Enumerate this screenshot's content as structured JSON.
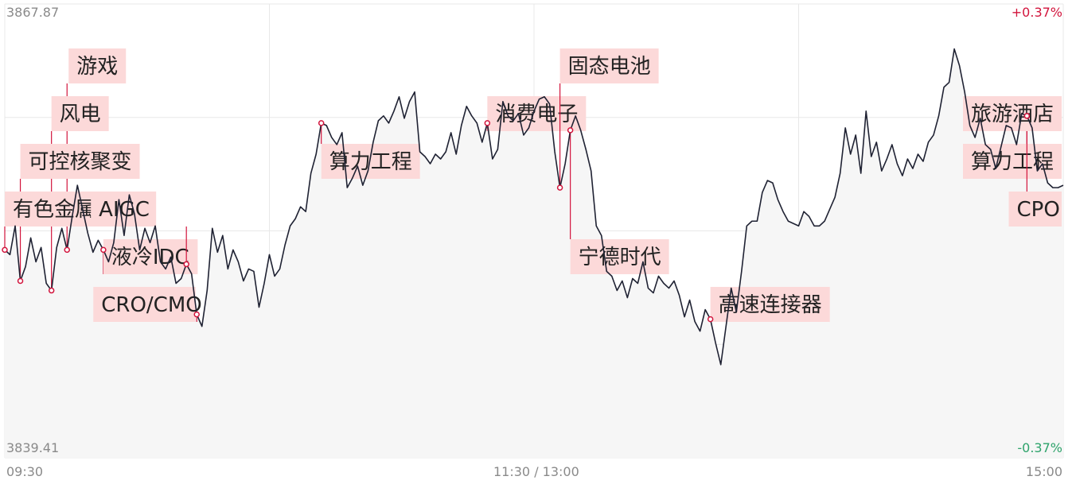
{
  "chart_data": {
    "type": "line",
    "y_top_label": "3867.87",
    "y_bottom_label": "3839.41",
    "pct_top_label": "+0.37%",
    "pct_bottom_label": "-0.37%",
    "ylim": [
      3839.41,
      3867.87
    ],
    "x_tick_labels": [
      "09:30",
      "11:30 / 13:00",
      "15:00"
    ],
    "grid": true,
    "colors": {
      "line": "#1f2233",
      "marker": "#d2143c",
      "label_bg": "#fcd9d9",
      "grid": "#e8e8e8",
      "fill": "#f6f6f6",
      "up": "#d2143c",
      "down": "#2ea36b"
    },
    "series": [
      {
        "values": [
          3852.45,
          3852.15,
          3853.95,
          3850.5,
          3851.4,
          3853.2,
          3851.7,
          3852.6,
          3850.35,
          3849.9,
          3852.6,
          3853.8,
          3852.45,
          3854.55,
          3856.5,
          3855.0,
          3853.5,
          3852.3,
          3853.05,
          3852.45,
          3851.7,
          3852.9,
          3855.6,
          3853.35,
          3855.9,
          3854.7,
          3852.45,
          3853.8,
          3852.9,
          3853.95,
          3851.7,
          3851.25,
          3852.0,
          3850.35,
          3850.65,
          3851.55,
          3850.95,
          3848.4,
          3847.65,
          3849.9,
          3853.8,
          3852.3,
          3853.35,
          3851.25,
          3852.45,
          3851.7,
          3850.5,
          3851.25,
          3851.1,
          3848.85,
          3850.35,
          3852.15,
          3850.8,
          3851.25,
          3852.75,
          3853.95,
          3854.4,
          3855.15,
          3854.85,
          3857.25,
          3858.45,
          3860.4,
          3860.25,
          3859.5,
          3859.05,
          3859.8,
          3856.35,
          3856.95,
          3857.7,
          3856.5,
          3857.4,
          3859.2,
          3860.55,
          3860.85,
          3860.4,
          3861.15,
          3862.05,
          3860.7,
          3861.75,
          3862.35,
          3858.6,
          3858.3,
          3857.85,
          3858.45,
          3858.15,
          3858.6,
          3859.8,
          3858.45,
          3860.25,
          3861.45,
          3860.85,
          3860.4,
          3859.2,
          3860.4,
          3858.15,
          3858.75,
          3861.75,
          3860.85,
          3860.55,
          3861.0,
          3859.65,
          3860.1,
          3861.15,
          3861.9,
          3862.05,
          3861.6,
          3858.6,
          3856.35,
          3857.85,
          3859.95,
          3860.85,
          3859.95,
          3858.75,
          3857.4,
          3853.95,
          3853.35,
          3851.1,
          3850.8,
          3849.9,
          3850.5,
          3849.45,
          3850.65,
          3850.35,
          3851.7,
          3850.05,
          3849.75,
          3850.8,
          3850.35,
          3850.05,
          3850.5,
          3849.6,
          3848.25,
          3849.3,
          3847.95,
          3847.35,
          3848.7,
          3848.1,
          3846.6,
          3845.25,
          3847.65,
          3850.05,
          3848.55,
          3851.1,
          3853.95,
          3854.25,
          3854.25,
          3856.05,
          3856.8,
          3856.65,
          3855.6,
          3854.85,
          3854.25,
          3854.1,
          3853.95,
          3854.85,
          3854.55,
          3853.95,
          3853.95,
          3854.25,
          3855.0,
          3855.75,
          3857.25,
          3860.1,
          3858.45,
          3859.65,
          3857.25,
          3861.15,
          3858.3,
          3859.2,
          3857.4,
          3858.15,
          3859.05,
          3857.85,
          3857.1,
          3858.15,
          3857.55,
          3858.45,
          3858.0,
          3859.2,
          3859.65,
          3860.85,
          3862.65,
          3862.95,
          3865.05,
          3864.0,
          3862.35,
          3860.25,
          3859.5,
          3860.7,
          3859.05,
          3858.75,
          3857.55,
          3858.9,
          3860.25,
          3860.1,
          3859.05,
          3861.0,
          3860.85,
          3860.1,
          3857.4,
          3857.85,
          3856.65,
          3856.35,
          3856.35,
          3856.5
        ]
      }
    ],
    "annotations": [
      {
        "text": "游戏",
        "index": 12
      },
      {
        "text": "风电",
        "index": 9
      },
      {
        "text": "可控核聚变",
        "index": 3
      },
      {
        "text": "有色金属概念",
        "index": 0
      },
      {
        "text": "液冷IDC",
        "index": 19
      },
      {
        "text": "AIGC",
        "index": 35
      },
      {
        "text": "CRO/CMO",
        "index": 37
      },
      {
        "text": "算力工程",
        "index": 61
      },
      {
        "text": "消费电子",
        "index": 93
      },
      {
        "text": "固态电池",
        "index": 107
      },
      {
        "text": "宁德时代",
        "index": 109
      },
      {
        "text": "高速连接器",
        "index": 136
      },
      {
        "text": "算力工程",
        "index": 197
      },
      {
        "text": "CPO",
        "index": 197
      },
      {
        "text": "旅游酒店",
        "index": 210
      }
    ]
  }
}
